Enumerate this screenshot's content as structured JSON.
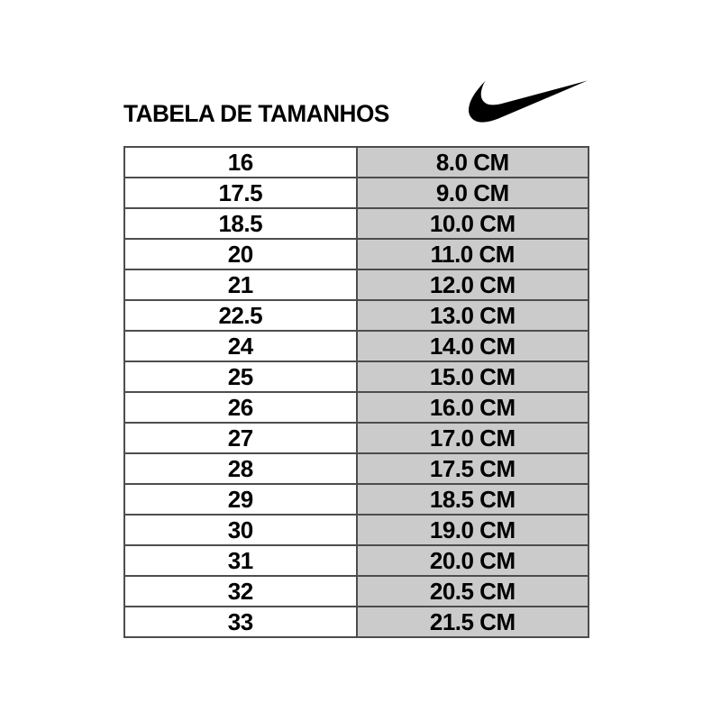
{
  "header": {
    "title": "TABELA DE TAMANHOS",
    "brand_logo": "nike-swoosh"
  },
  "colors": {
    "background": "#ffffff",
    "text": "#000000",
    "logo": "#000000",
    "size_column_bg": "#ffffff",
    "cm_column_bg": "#cbcbcb",
    "table_border": "#4d4d4d"
  },
  "chart_data": {
    "type": "table",
    "title": "TABELA DE TAMANHOS",
    "header_row_visible": false,
    "column_keys": [
      "size",
      "length"
    ],
    "rows": [
      {
        "size": "16",
        "length": "8.0 CM"
      },
      {
        "size": "17.5",
        "length": "9.0 CM"
      },
      {
        "size": "18.5",
        "length": "10.0 CM"
      },
      {
        "size": "20",
        "length": "11.0 CM"
      },
      {
        "size": "21",
        "length": "12.0 CM"
      },
      {
        "size": "22.5",
        "length": "13.0 CM"
      },
      {
        "size": "24",
        "length": "14.0 CM"
      },
      {
        "size": "25",
        "length": "15.0 CM"
      },
      {
        "size": "26",
        "length": "16.0 CM"
      },
      {
        "size": "27",
        "length": "17.0 CM"
      },
      {
        "size": "28",
        "length": "17.5 CM"
      },
      {
        "size": "29",
        "length": "18.5 CM"
      },
      {
        "size": "30",
        "length": "19.0 CM"
      },
      {
        "size": "31",
        "length": "20.0 CM"
      },
      {
        "size": "32",
        "length": "20.5 CM"
      },
      {
        "size": "33",
        "length": "21.5 CM"
      }
    ]
  }
}
